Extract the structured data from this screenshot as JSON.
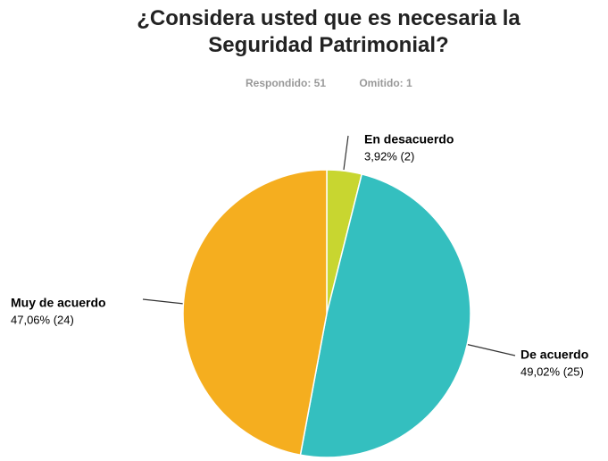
{
  "chart_data": {
    "type": "pie",
    "title": "¿Considera usted que es necesaria la Seguridad Patrimonial?",
    "subtitle": [
      "Respondido: 51",
      "Omitido: 1"
    ],
    "categories": [
      "En desacuerdo",
      "De acuerdo",
      "Muy de acuerdo"
    ],
    "values": [
      3.92,
      49.02,
      47.06
    ],
    "counts": [
      2,
      25,
      24
    ],
    "value_labels": [
      "3,92% (2)",
      "49,02% (25)",
      "47,06% (24)"
    ],
    "colors": [
      "#c8d630",
      "#34bfbf",
      "#f5ae1f"
    ]
  }
}
